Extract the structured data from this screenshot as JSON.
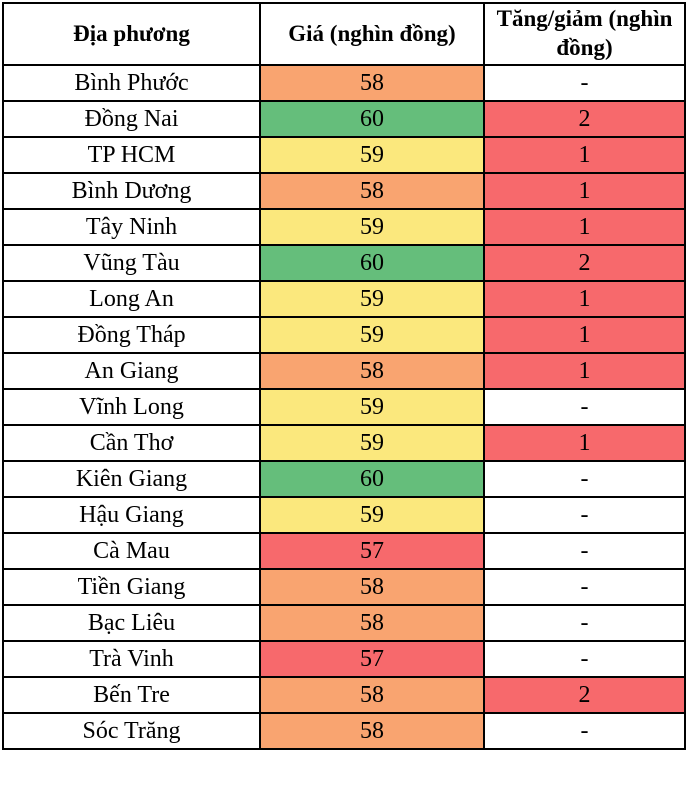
{
  "colors": {
    "green": "#65BE7B",
    "yellow": "#FBE87D",
    "orange": "#F9A470",
    "red": "#F7696C",
    "white": "#FFFFFF",
    "border": "#000000",
    "text": "#000000"
  },
  "chart_data": {
    "type": "table",
    "title": "",
    "columns": [
      {
        "label": "Địa phương"
      },
      {
        "label": "Giá (nghìn đồng)"
      },
      {
        "label": "Tăng/giảm (nghìn đồng)"
      }
    ],
    "rows": [
      {
        "province": "Bình Phước",
        "price": "58",
        "price_color": "orange",
        "change": "-",
        "change_color": "white"
      },
      {
        "province": "Đồng Nai",
        "price": "60",
        "price_color": "green",
        "change": "2",
        "change_color": "red"
      },
      {
        "province": "TP HCM",
        "price": "59",
        "price_color": "yellow",
        "change": "1",
        "change_color": "red"
      },
      {
        "province": "Bình Dương",
        "price": "58",
        "price_color": "orange",
        "change": "1",
        "change_color": "red"
      },
      {
        "province": "Tây Ninh",
        "price": "59",
        "price_color": "yellow",
        "change": "1",
        "change_color": "red"
      },
      {
        "province": "Vũng Tàu",
        "price": "60",
        "price_color": "green",
        "change": "2",
        "change_color": "red"
      },
      {
        "province": "Long An",
        "price": "59",
        "price_color": "yellow",
        "change": "1",
        "change_color": "red"
      },
      {
        "province": "Đồng Tháp",
        "price": "59",
        "price_color": "yellow",
        "change": "1",
        "change_color": "red"
      },
      {
        "province": "An Giang",
        "price": "58",
        "price_color": "orange",
        "change": "1",
        "change_color": "red"
      },
      {
        "province": "Vĩnh Long",
        "price": "59",
        "price_color": "yellow",
        "change": "-",
        "change_color": "white"
      },
      {
        "province": "Cần Thơ",
        "price": "59",
        "price_color": "yellow",
        "change": "1",
        "change_color": "red"
      },
      {
        "province": "Kiên Giang",
        "price": "60",
        "price_color": "green",
        "change": "-",
        "change_color": "white"
      },
      {
        "province": "Hậu Giang",
        "price": "59",
        "price_color": "yellow",
        "change": "-",
        "change_color": "white"
      },
      {
        "province": "Cà Mau",
        "price": "57",
        "price_color": "red",
        "change": "-",
        "change_color": "white"
      },
      {
        "province": "Tiền Giang",
        "price": "58",
        "price_color": "orange",
        "change": "-",
        "change_color": "white"
      },
      {
        "province": "Bạc Liêu",
        "price": "58",
        "price_color": "orange",
        "change": "-",
        "change_color": "white"
      },
      {
        "province": "Trà Vinh",
        "price": "57",
        "price_color": "red",
        "change": "-",
        "change_color": "white"
      },
      {
        "province": "Bến Tre",
        "price": "58",
        "price_color": "orange",
        "change": "2",
        "change_color": "red"
      },
      {
        "province": "Sóc Trăng",
        "price": "58",
        "price_color": "orange",
        "change": "-",
        "change_color": "white"
      }
    ]
  }
}
